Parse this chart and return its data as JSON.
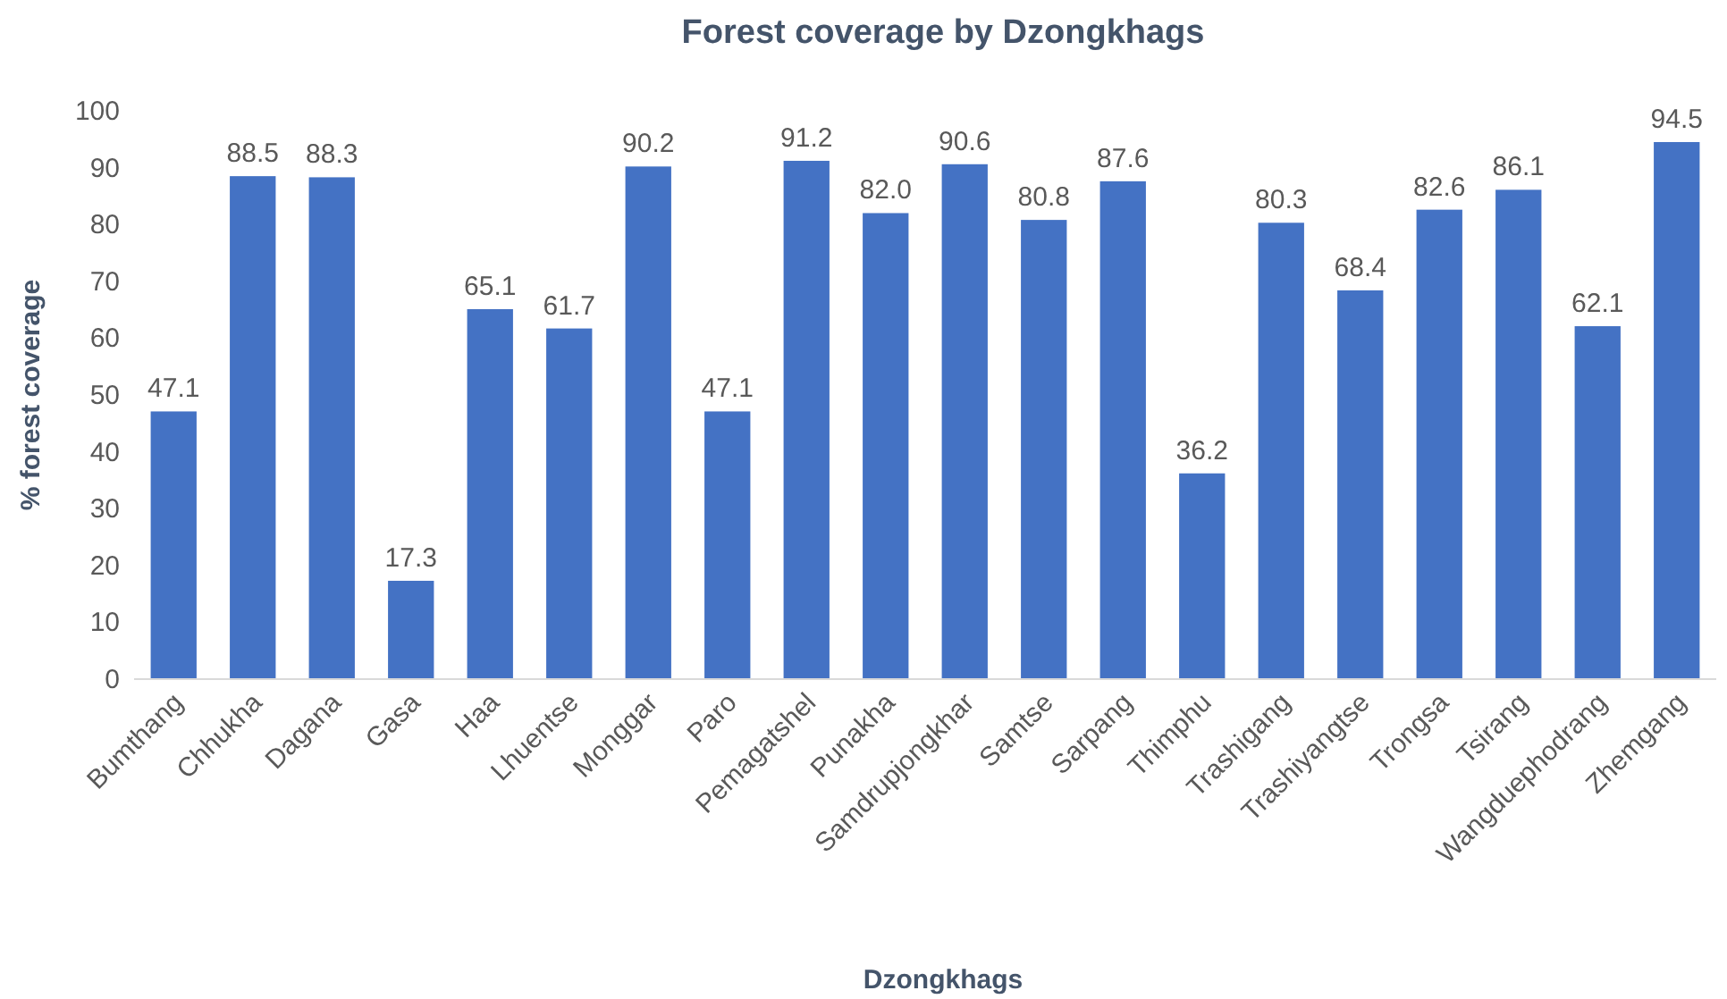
{
  "chart_data": {
    "type": "bar",
    "title": "Forest coverage by Dzongkhags",
    "xlabel": "Dzongkhags",
    "ylabel": "% forest coverage",
    "categories": [
      "Bumthang",
      "Chhukha",
      "Dagana",
      "Gasa",
      "Haa",
      "Lhuentse",
      "Monggar",
      "Paro",
      "Pemagatshel",
      "Punakha",
      "Samdrupjongkhar",
      "Samtse",
      "Sarpang",
      "Thimphu",
      "Trashigang",
      "Trashiyangtse",
      "Trongsa",
      "Tsirang",
      "Wangduephodrang",
      "Zhemgang"
    ],
    "values": [
      47.1,
      88.5,
      88.3,
      17.3,
      65.1,
      61.7,
      90.2,
      47.1,
      91.2,
      82.0,
      90.6,
      80.8,
      87.6,
      36.2,
      80.3,
      68.4,
      82.6,
      86.1,
      62.1,
      94.5
    ],
    "value_labels": [
      "47.1",
      "88.5",
      "88.3",
      "17.3",
      "65.1",
      "61.7",
      "90.2",
      "47.1",
      "91.2",
      "82.0",
      "90.6",
      "80.8",
      "87.6",
      "36.2",
      "80.3",
      "68.4",
      "82.6",
      "86.1",
      "62.1",
      "94.5"
    ],
    "color": "#4472c4",
    "ylim": [
      0,
      100
    ],
    "yticks": [
      0,
      10,
      20,
      30,
      40,
      50,
      60,
      70,
      80,
      90,
      100
    ],
    "grid": false
  }
}
